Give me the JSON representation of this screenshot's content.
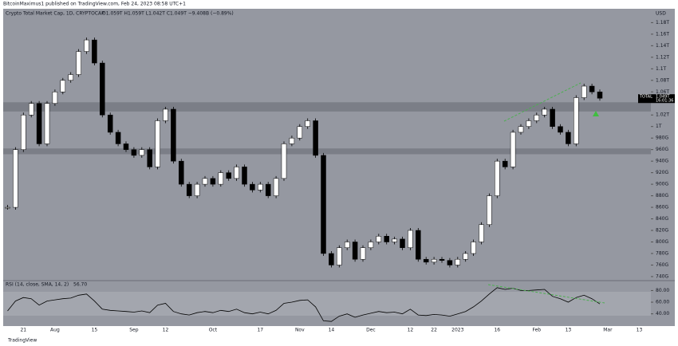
{
  "header": {
    "publisher": "BitcoinMaximus1 published on TradingView.com, Feb 24, 2023 08:58 UTC+1",
    "footer": "TradingView"
  },
  "chart_data": [
    {
      "type": "candlestick",
      "title": "Crypto Total Market Cap, 1D, CRYPTOCAP",
      "subtitle": "O1.059T H1.059T L1.042T C1.049T −9.408B (−0.89%)",
      "axis_unit": "USD",
      "last_label": {
        "symbol": "TOTAL",
        "price": "1.049T",
        "countdown": "16:01:36"
      },
      "categories": [
        null,
        null,
        "21",
        null,
        null,
        null,
        "Aug",
        null,
        null,
        null,
        null,
        "15",
        null,
        null,
        null,
        null,
        "Sep",
        null,
        null,
        null,
        "12",
        null,
        null,
        null,
        null,
        null,
        "Oct",
        null,
        null,
        null,
        null,
        null,
        "17",
        null,
        null,
        null,
        null,
        "Nov",
        null,
        null,
        null,
        "14",
        null,
        null,
        null,
        null,
        "Dec",
        null,
        null,
        null,
        null,
        "12",
        null,
        null,
        "22",
        null,
        null,
        "2023",
        null,
        null,
        null,
        null,
        "16",
        null,
        null,
        null,
        null,
        "Feb",
        null,
        null,
        null,
        "13",
        null,
        null,
        null,
        null,
        "Mar",
        null,
        null,
        null,
        "13"
      ],
      "values": [
        860,
        960,
        1020,
        1040,
        970,
        1040,
        1060,
        1080,
        1090,
        1130,
        1150,
        1110,
        1020,
        990,
        970,
        960,
        950,
        960,
        930,
        1010,
        1030,
        940,
        900,
        880,
        900,
        910,
        900,
        920,
        910,
        930,
        900,
        890,
        900,
        880,
        910,
        970,
        980,
        1000,
        1010,
        950,
        780,
        760,
        790,
        800,
        770,
        790,
        800,
        810,
        800,
        805,
        790,
        820,
        770,
        765,
        770,
        768,
        760,
        770,
        780,
        800,
        830,
        880,
        940,
        930,
        990,
        1000,
        1010,
        1020,
        1030,
        1000,
        990,
        970,
        1050,
        1070,
        1060,
        1049,
        null,
        null,
        null,
        null,
        null
      ],
      "up_color": "#ffffff",
      "down_color": "#000000",
      "bands": [
        {
          "low": 1026,
          "high": 1042
        },
        {
          "low": 952,
          "high": 962
        }
      ],
      "ylim": [
        733,
        1204
      ],
      "yticks": [
        {
          "value": 740,
          "label": "740G"
        },
        {
          "value": 760,
          "label": "760G"
        },
        {
          "value": 780,
          "label": "780G"
        },
        {
          "value": 800,
          "label": "800G"
        },
        {
          "value": 820,
          "label": "820G"
        },
        {
          "value": 840,
          "label": "840G"
        },
        {
          "value": 860,
          "label": "860G"
        },
        {
          "value": 880,
          "label": "880G"
        },
        {
          "value": 900,
          "label": "900G"
        },
        {
          "value": 920,
          "label": "920G"
        },
        {
          "value": 940,
          "label": "940G"
        },
        {
          "value": 960,
          "label": "960G"
        },
        {
          "value": 980,
          "label": "980G"
        },
        {
          "value": 1000,
          "label": "1T"
        },
        {
          "value": 1020,
          "label": "1.02T"
        },
        {
          "value": 1060,
          "label": "1.06T"
        },
        {
          "value": 1080,
          "label": "1.08T"
        },
        {
          "value": 1100,
          "label": "1.1T"
        },
        {
          "value": 1120,
          "label": "1.12T"
        },
        {
          "value": 1140,
          "label": "1.14T"
        },
        {
          "value": 1160,
          "label": "1.16T"
        },
        {
          "value": 1180,
          "label": "1.18T"
        }
      ]
    },
    {
      "type": "line",
      "title": "RSI (14, close, SMA, 14, 2)",
      "current": "56.70",
      "color": "#000000",
      "values": [
        45,
        62,
        68,
        66,
        55,
        62,
        64,
        66,
        67,
        72,
        74,
        62,
        48,
        46,
        45,
        44,
        43,
        45,
        42,
        55,
        58,
        44,
        40,
        38,
        42,
        44,
        42,
        46,
        44,
        48,
        42,
        40,
        43,
        40,
        46,
        58,
        60,
        63,
        64,
        52,
        28,
        27,
        36,
        40,
        34,
        38,
        41,
        44,
        42,
        43,
        40,
        48,
        38,
        37,
        39,
        38,
        36,
        40,
        44,
        52,
        62,
        74,
        85,
        82,
        84,
        80,
        80,
        81,
        82,
        70,
        66,
        60,
        68,
        72,
        66,
        57,
        null,
        null,
        null,
        null,
        null
      ],
      "ylim": [
        19,
        97
      ],
      "yticks": [
        {
          "value": 40,
          "label": "40.00"
        },
        {
          "value": 60,
          "label": "60.00"
        },
        {
          "value": 80,
          "label": "80.00"
        }
      ]
    }
  ]
}
